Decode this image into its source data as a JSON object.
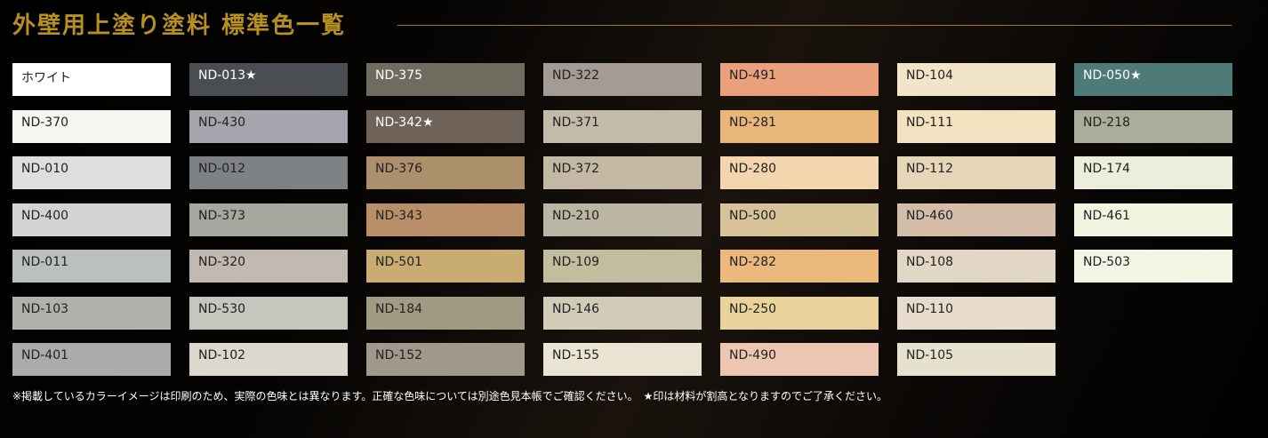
{
  "title": "外壁用上塗り塗料 標準色一覧",
  "columns": [
    [
      {
        "label": "ホワイト",
        "color": "#ffffff"
      },
      {
        "label": "ND-370",
        "color": "#f6f5f0"
      },
      {
        "label": "ND-010",
        "color": "#dededd"
      },
      {
        "label": "ND-400",
        "color": "#d3d4d2"
      },
      {
        "label": "ND-011",
        "color": "#bcc0bd"
      },
      {
        "label": "ND-103",
        "color": "#b1b1ab"
      },
      {
        "label": "ND-401",
        "color": "#aaabaa"
      }
    ],
    [
      {
        "label": "ND-013★",
        "color": "#4a4d52",
        "dark": true
      },
      {
        "label": "ND-430",
        "color": "#a6a4ad"
      },
      {
        "label": "ND-012",
        "color": "#7f8285"
      },
      {
        "label": "ND-373",
        "color": "#a8a79f"
      },
      {
        "label": "ND-320",
        "color": "#c2b9b2"
      },
      {
        "label": "ND-530",
        "color": "#c6c5be"
      },
      {
        "label": "ND-102",
        "color": "#dcd8cd"
      }
    ],
    [
      {
        "label": "ND-375",
        "color": "#6f6b5e",
        "dark": true
      },
      {
        "label": "ND-342★",
        "color": "#6f6259",
        "dark": true
      },
      {
        "label": "ND-376",
        "color": "#ac906c"
      },
      {
        "label": "ND-343",
        "color": "#b98f69"
      },
      {
        "label": "ND-501",
        "color": "#c8ac72"
      },
      {
        "label": "ND-184",
        "color": "#a29b83"
      },
      {
        "label": "ND-152",
        "color": "#a0988a"
      }
    ],
    [
      {
        "label": "ND-322",
        "color": "#a39b94"
      },
      {
        "label": "ND-371",
        "color": "#c3baa8"
      },
      {
        "label": "ND-372",
        "color": "#c2b8a4"
      },
      {
        "label": "ND-210",
        "color": "#bbb5a3"
      },
      {
        "label": "ND-109",
        "color": "#c3bd9f"
      },
      {
        "label": "ND-146",
        "color": "#d0ccb7"
      },
      {
        "label": "ND-155",
        "color": "#eae5d3"
      }
    ],
    [
      {
        "label": "ND-491",
        "color": "#eba07d"
      },
      {
        "label": "ND-281",
        "color": "#e9b67a"
      },
      {
        "label": "ND-280",
        "color": "#f3d6ad"
      },
      {
        "label": "ND-500",
        "color": "#d6c398"
      },
      {
        "label": "ND-282",
        "color": "#ebb97b"
      },
      {
        "label": "ND-250",
        "color": "#e9d39b"
      },
      {
        "label": "ND-490",
        "color": "#ecc6b0"
      }
    ],
    [
      {
        "label": "ND-104",
        "color": "#f2e4c9"
      },
      {
        "label": "ND-111",
        "color": "#f2e2c0"
      },
      {
        "label": "ND-112",
        "color": "#e4d6b6"
      },
      {
        "label": "ND-460",
        "color": "#d3bda8"
      },
      {
        "label": "ND-108",
        "color": "#e2d6c4"
      },
      {
        "label": "ND-110",
        "color": "#e7dccb"
      },
      {
        "label": "ND-105",
        "color": "#e6e1cc"
      }
    ],
    [
      {
        "label": "ND-050★",
        "color": "#4e7a77",
        "dark": true
      },
      {
        "label": "ND-218",
        "color": "#a8ae99"
      },
      {
        "label": "ND-174",
        "color": "#ebeedb"
      },
      {
        "label": "ND-461",
        "color": "#f1f5e0"
      },
      {
        "label": "ND-503",
        "color": "#f5f5e6"
      }
    ]
  ],
  "note": "※掲載しているカラーイメージは印刷のため、実際の色味とは異なります。正確な色味については別途色見本帳でご確認ください。　★印は材料が割高となりますのでご了承ください。"
}
